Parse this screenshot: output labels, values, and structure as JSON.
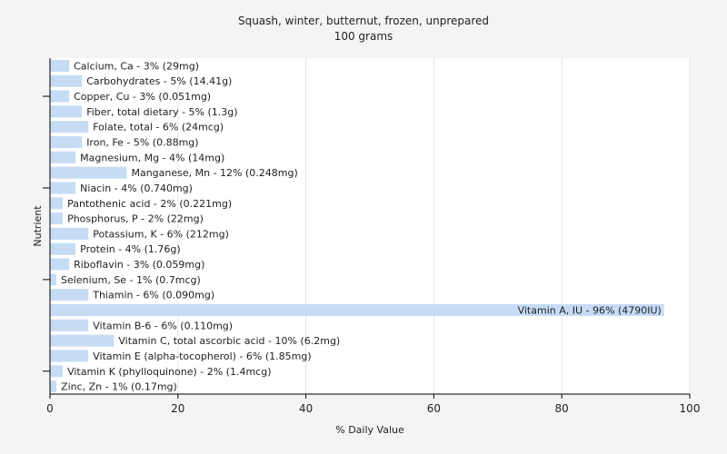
{
  "chart_data": {
    "type": "bar",
    "orientation": "horizontal",
    "title": "Squash, winter, butternut, frozen, unprepared",
    "subtitle": "100 grams",
    "xlabel": "% Daily Value",
    "ylabel": "Nutrient",
    "xlim": [
      0,
      100
    ],
    "xticks": [
      "0",
      "20",
      "40",
      "60",
      "80",
      "100"
    ],
    "grid": true,
    "bar_color": "#c6dcf5",
    "categories": [
      "Calcium, Ca",
      "Carbohydrates",
      "Copper, Cu",
      "Fiber, total dietary",
      "Folate, total",
      "Iron, Fe",
      "Magnesium, Mg",
      "Manganese, Mn",
      "Niacin",
      "Pantothenic acid",
      "Phosphorus, P",
      "Potassium, K",
      "Protein",
      "Riboflavin",
      "Selenium, Se",
      "Thiamin",
      "Vitamin A, IU",
      "Vitamin B-6",
      "Vitamin C, total ascorbic acid",
      "Vitamin E (alpha-tocopherol)",
      "Vitamin K (phylloquinone)",
      "Zinc, Zn"
    ],
    "values": [
      3,
      5,
      3,
      5,
      6,
      5,
      4,
      12,
      4,
      2,
      2,
      6,
      4,
      3,
      1,
      6,
      96,
      6,
      10,
      6,
      2,
      1
    ],
    "labels": [
      "Calcium, Ca - 3% (29mg)",
      "Carbohydrates - 5% (14.41g)",
      "Copper, Cu - 3% (0.051mg)",
      "Fiber, total dietary - 5% (1.3g)",
      "Folate, total - 6% (24mcg)",
      "Iron, Fe - 5% (0.88mg)",
      "Magnesium, Mg - 4% (14mg)",
      "Manganese, Mn - 12% (0.248mg)",
      "Niacin - 4% (0.740mg)",
      "Pantothenic acid - 2% (0.221mg)",
      "Phosphorus, P - 2% (22mg)",
      "Potassium, K - 6% (212mg)",
      "Protein - 4% (1.76g)",
      "Riboflavin - 3% (0.059mg)",
      "Selenium, Se - 1% (0.7mcg)",
      "Thiamin - 6% (0.090mg)",
      "Vitamin A, IU - 96% (4790IU)",
      "Vitamin B-6 - 6% (0.110mg)",
      "Vitamin C, total ascorbic acid - 10% (6.2mg)",
      "Vitamin E (alpha-tocopherol) - 6% (1.85mg)",
      "Vitamin K (phylloquinone) - 2% (1.4mcg)",
      "Zinc, Zn - 1% (0.17mg)"
    ]
  }
}
